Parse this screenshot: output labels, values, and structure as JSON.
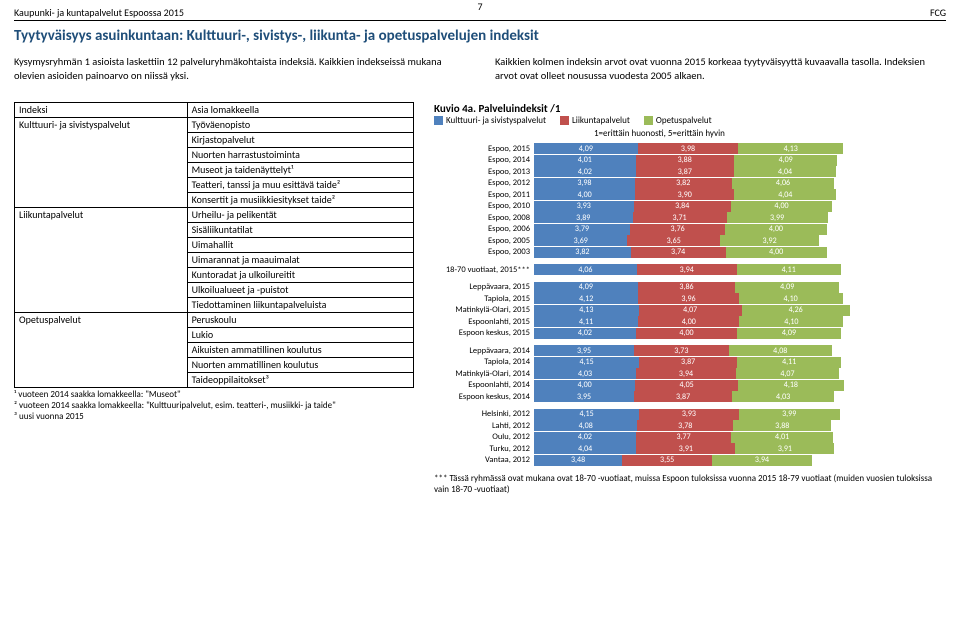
{
  "header": {
    "left": "Kaupunki- ja kuntapalvelut Espoossa 2015",
    "page_number": "7",
    "right": "FCG"
  },
  "title": "Tyytyväisyys asuinkuntaan: Kulttuuri-, sivistys-, liikunta- ja opetuspalvelujen indeksit",
  "intro_left": "Kysymysryhmän 1 asioista laskettiin 12 palveluryhmäkohtaista indeksiä. Kaikkien indekseissä mukana olevien asioiden painoarvo on niissä yksi.",
  "intro_right": "Kaikkien kolmen indeksin arvot ovat vuonna 2015 korkeaa tyytyväisyyttä kuvaavalla tasolla. Indeksien arvot ovat olleet nousussa vuodesta 2005 alkaen.",
  "index_table": {
    "head": [
      "Indeksi",
      "Asia lomakkeella"
    ],
    "groups": [
      {
        "cat": "Kulttuuri- ja sivistyspalvelut",
        "items": [
          "Työväenopisto",
          "Kirjastopalvelut",
          "Nuorten harrastustoiminta",
          "Museot ja taidenäyttelyt¹",
          "Teatteri, tanssi ja muu esittävä taide²",
          "Konsertit ja musiikkiesitykset taide²"
        ]
      },
      {
        "cat": "Liikuntapalvelut",
        "items": [
          "Urheilu- ja pelikentät",
          "Sisäliikuntatilat",
          "Uimahallit",
          "Uimarannat ja maauimalat",
          "Kuntoradat ja ulkoilureitit",
          "Ulkoilualueet ja -puistot",
          "Tiedottaminen liikuntapalveluista"
        ]
      },
      {
        "cat": "Opetuspalvelut",
        "items": [
          "Peruskoulu",
          "Lukio",
          "Aikuisten ammatillinen koulutus",
          "Nuorten ammatillinen koulutus",
          "Taideoppilaitokset³"
        ]
      }
    ]
  },
  "footnotes": {
    "f1": "¹ vuoteen 2014 saakka lomakkeella: \"Museot\"",
    "f2": "² vuoteen 2014 saakka lomakkeella: \"Kulttuuripalvelut, esim. teatteri-, musiikki- ja taide\"",
    "f3": "³ uusi vuonna 2015"
  },
  "chart": {
    "title": "Kuvio 4a. Palveluindeksit /1",
    "legend": [
      {
        "label": "Kulttuuri- ja sivistyspalvelut",
        "color": "#4f81bd"
      },
      {
        "label": "Liikuntapalvelut",
        "color": "#c0504d"
      },
      {
        "label": "Opetuspalvelut",
        "color": "#9bbb59"
      }
    ],
    "subtitle": "1=erittäin huonosti, 5=erittäin hyvin",
    "xmax": 5,
    "groups": [
      [
        {
          "label": "Espoo, 2015",
          "v": [
            4.09,
            3.98,
            4.13
          ]
        },
        {
          "label": "Espoo, 2014",
          "v": [
            4.01,
            3.88,
            4.09
          ]
        },
        {
          "label": "Espoo, 2013",
          "v": [
            4.02,
            3.87,
            4.04
          ]
        },
        {
          "label": "Espoo, 2012",
          "v": [
            3.98,
            3.82,
            4.06
          ]
        },
        {
          "label": "Espoo, 2011",
          "v": [
            4.0,
            3.9,
            4.04
          ]
        },
        {
          "label": "Espoo, 2010",
          "v": [
            3.93,
            3.84,
            4.0
          ]
        },
        {
          "label": "Espoo, 2008",
          "v": [
            3.89,
            3.71,
            3.99
          ]
        },
        {
          "label": "Espoo, 2006",
          "v": [
            3.79,
            3.76,
            4.0
          ]
        },
        {
          "label": "Espoo, 2005",
          "v": [
            3.69,
            3.65,
            3.92
          ]
        },
        {
          "label": "Espoo, 2003",
          "v": [
            3.82,
            3.74,
            4.0
          ]
        }
      ],
      [
        {
          "label": "18-70 vuotiaat, 2015***",
          "v": [
            4.06,
            3.94,
            4.11
          ]
        }
      ],
      [
        {
          "label": "Leppävaara, 2015",
          "v": [
            4.09,
            3.86,
            4.09
          ]
        },
        {
          "label": "Tapiola, 2015",
          "v": [
            4.12,
            3.96,
            4.1
          ]
        },
        {
          "label": "Matinkylä-Olari, 2015",
          "v": [
            4.13,
            4.07,
            4.26
          ]
        },
        {
          "label": "Espoonlahti, 2015",
          "v": [
            4.11,
            4.0,
            4.1
          ]
        },
        {
          "label": "Espoon keskus, 2015",
          "v": [
            4.02,
            4.0,
            4.09
          ]
        }
      ],
      [
        {
          "label": "Leppävaara, 2014",
          "v": [
            3.95,
            3.73,
            4.08
          ]
        },
        {
          "label": "Tapiola, 2014",
          "v": [
            4.15,
            3.87,
            4.11
          ]
        },
        {
          "label": "Matinkylä-Olari, 2014",
          "v": [
            4.03,
            3.94,
            4.07
          ]
        },
        {
          "label": "Espoonlahti, 2014",
          "v": [
            4.0,
            4.05,
            4.18
          ]
        },
        {
          "label": "Espoon keskus, 2014",
          "v": [
            3.95,
            3.87,
            4.03
          ]
        }
      ],
      [
        {
          "label": "Helsinki, 2012",
          "v": [
            4.15,
            3.93,
            3.99
          ]
        },
        {
          "label": "Lahti, 2012",
          "v": [
            4.08,
            3.78,
            3.88
          ]
        },
        {
          "label": "Oulu, 2012",
          "v": [
            4.02,
            3.77,
            4.01
          ]
        },
        {
          "label": "Turku, 2012",
          "v": [
            4.04,
            3.91,
            3.91
          ]
        },
        {
          "label": "Vantaa, 2012",
          "v": [
            3.48,
            3.55,
            3.94
          ]
        }
      ]
    ]
  },
  "foot_note": "*** Tässä ryhmässä ovat mukana ovat 18-70 -vuotiaat, muissa Espoon tuloksissa vuonna 2015 18-79 vuotiaat (muiden vuosien tuloksissa vain 18-70 -vuotiaat)"
}
